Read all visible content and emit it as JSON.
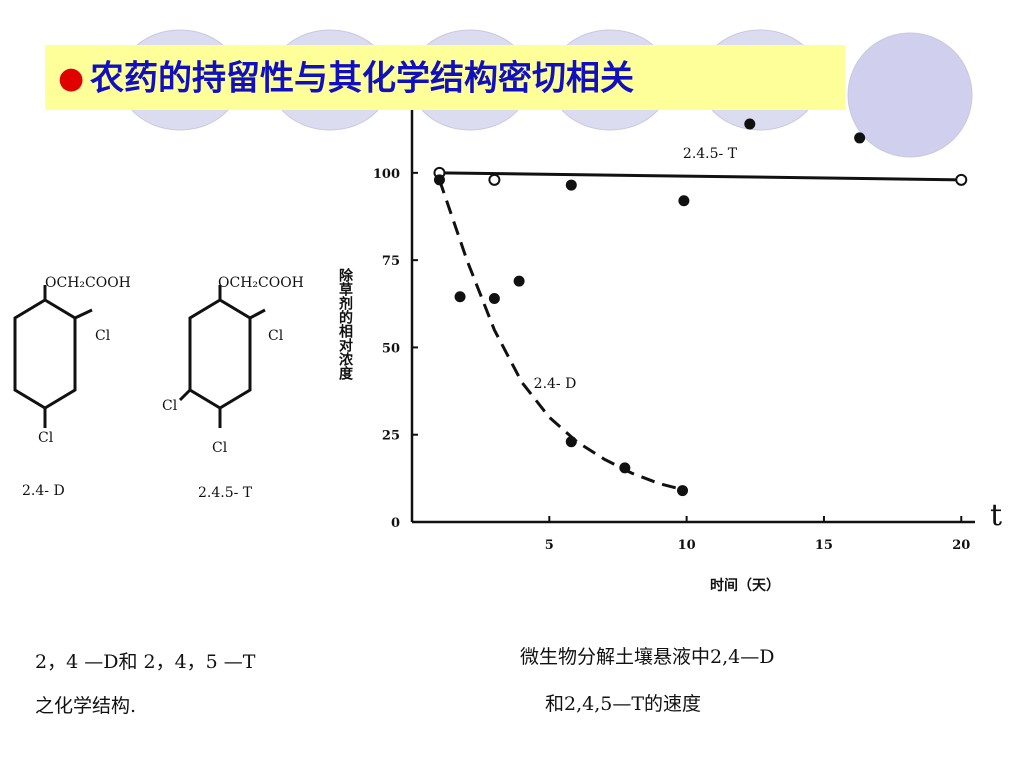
{
  "header": {
    "bullet": "●",
    "title": "农药的持留性与其化学结构密切相关"
  },
  "structures": [
    {
      "top": "OCH₂COOH",
      "right": "Cl",
      "bottom": "Cl",
      "name": "2.4- D"
    },
    {
      "top": "OCH₂COOH",
      "right": "Cl",
      "left": "Cl",
      "bottom": "Cl",
      "name": "2.4.5- T"
    }
  ],
  "captions": {
    "left": [
      "2，4 —D和 2，4，5 —T",
      "之化学结构."
    ],
    "right": [
      "微生物分解土壤悬液中2,4—D",
      "和2,4,5—T的速度"
    ]
  },
  "chart_data": {
    "type": "line",
    "x_label": "时间（天）",
    "y_label": "除草剂的相对浓度",
    "annotation": "t",
    "xlim": [
      0,
      20.5
    ],
    "ylim": [
      0,
      118
    ],
    "xticks": [
      5,
      10,
      15,
      20
    ],
    "yticks": [
      0,
      25,
      50,
      75,
      100
    ],
    "series": [
      {
        "name": "2.4.5- T",
        "line": "solid",
        "x": [
          1,
          20
        ],
        "values": [
          100,
          98
        ]
      },
      {
        "name": "2.4- D",
        "line": "dashed",
        "x": [
          1,
          2,
          3,
          4,
          5,
          6,
          7,
          8,
          9,
          10
        ],
        "values": [
          98,
          75,
          55,
          40,
          30,
          23,
          18,
          14,
          11,
          9
        ]
      },
      {
        "marker": "open",
        "x": [
          1,
          3,
          20
        ],
        "values": [
          100,
          98,
          98
        ]
      },
      {
        "marker": "filled",
        "x": [
          1,
          1.75,
          3,
          3.9,
          5.8,
          7.75,
          9.85,
          5.8,
          9.9,
          12.3,
          16.3
        ],
        "values": [
          98,
          64.5,
          64,
          69,
          23,
          15.5,
          9,
          96.5,
          92,
          114,
          110
        ]
      }
    ]
  }
}
